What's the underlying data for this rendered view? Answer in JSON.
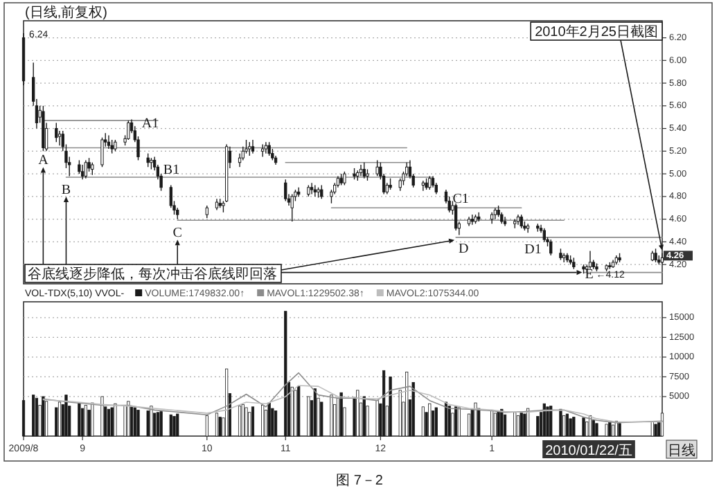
{
  "chart_data": [
    {
      "type": "candlestick",
      "title": "(日线,前复权)",
      "xlim": [
        "2009-08-14",
        "2010-02-25"
      ],
      "ylim": [
        4.03,
        6.35
      ],
      "grid": "y",
      "tick_labels": "y",
      "yticks": [
        {
          "value": 4.2,
          "label": "4.20"
        },
        {
          "value": 4.4,
          "label": "4.40"
        },
        {
          "value": 4.6,
          "label": "4.60"
        },
        {
          "value": 4.8,
          "label": "4.80"
        },
        {
          "value": 5.0,
          "label": "5.00"
        },
        {
          "value": 5.2,
          "label": "5.20"
        },
        {
          "value": 5.4,
          "label": "5.40"
        },
        {
          "value": 5.6,
          "label": "5.60"
        },
        {
          "value": 5.8,
          "label": "5.80"
        },
        {
          "value": 6.0,
          "label": "6.00"
        },
        {
          "value": 6.2,
          "label": "6.20"
        }
      ],
      "x": [
        "2009-08-14",
        "2009-08-17",
        "2009-08-18",
        "2009-08-19",
        "2009-08-20",
        "2009-08-21",
        "2009-08-24",
        "2009-08-25",
        "2009-08-26",
        "2009-08-27",
        "2009-08-28",
        "2009-08-31",
        "2009-09-01",
        "2009-09-02",
        "2009-09-03",
        "2009-09-04",
        "2009-09-07",
        "2009-09-08",
        "2009-09-09",
        "2009-09-10",
        "2009-09-11",
        "2009-09-14",
        "2009-09-15",
        "2009-09-16",
        "2009-09-17",
        "2009-09-18",
        "2009-09-21",
        "2009-09-22",
        "2009-09-23",
        "2009-09-24",
        "2009-09-25",
        "2009-09-28",
        "2009-09-29",
        "2009-09-30",
        "2009-10-09",
        "2009-10-12",
        "2009-10-13",
        "2009-10-14",
        "2009-10-15",
        "2009-10-16",
        "2009-10-19",
        "2009-10-20",
        "2009-10-21",
        "2009-10-22",
        "2009-10-23",
        "2009-10-26",
        "2009-10-27",
        "2009-10-28",
        "2009-10-29",
        "2009-10-30",
        "2009-11-02",
        "2009-11-03",
        "2009-11-04",
        "2009-11-05",
        "2009-11-06",
        "2009-11-09",
        "2009-11-10",
        "2009-11-11",
        "2009-11-12",
        "2009-11-13",
        "2009-11-16",
        "2009-11-17",
        "2009-11-18",
        "2009-11-19",
        "2009-11-20",
        "2009-11-23",
        "2009-11-24",
        "2009-11-25",
        "2009-11-26",
        "2009-11-27",
        "2009-11-30",
        "2009-12-01",
        "2009-12-02",
        "2009-12-03",
        "2009-12-04",
        "2009-12-07",
        "2009-12-08",
        "2009-12-09",
        "2009-12-10",
        "2009-12-11",
        "2009-12-14",
        "2009-12-15",
        "2009-12-16",
        "2009-12-17",
        "2009-12-18",
        "2009-12-21",
        "2009-12-22",
        "2009-12-23",
        "2009-12-24",
        "2009-12-25",
        "2009-12-28",
        "2009-12-29",
        "2009-12-30",
        "2009-12-31",
        "2010-01-04",
        "2010-01-05",
        "2010-01-06",
        "2010-01-07",
        "2010-01-08",
        "2010-01-11",
        "2010-01-12",
        "2010-01-13",
        "2010-01-14",
        "2010-01-15",
        "2010-01-18",
        "2010-01-19",
        "2010-01-20",
        "2010-01-21",
        "2010-01-22",
        "2010-01-25",
        "2010-01-26",
        "2010-01-27",
        "2010-01-28",
        "2010-01-29",
        "2010-02-01",
        "2010-02-02",
        "2010-02-03",
        "2010-02-04",
        "2010-02-05",
        "2010-02-08",
        "2010-02-09",
        "2010-02-10",
        "2010-02-11",
        "2010-02-12",
        "2010-02-22",
        "2010-02-23",
        "2010-02-24",
        "2010-02-25"
      ],
      "ohlc": [
        [
          6.2,
          6.24,
          5.78,
          5.82
        ],
        [
          5.85,
          5.98,
          5.6,
          5.64
        ],
        [
          5.6,
          5.66,
          5.4,
          5.45
        ],
        [
          5.5,
          5.6,
          5.45,
          5.56
        ],
        [
          5.55,
          5.6,
          5.2,
          5.23
        ],
        [
          5.22,
          5.45,
          5.2,
          5.4
        ],
        [
          5.4,
          5.45,
          5.28,
          5.32
        ],
        [
          5.33,
          5.38,
          5.25,
          5.35
        ],
        [
          5.35,
          5.38,
          5.2,
          5.24
        ],
        [
          5.2,
          5.26,
          5.05,
          5.1
        ],
        [
          5.1,
          5.15,
          4.98,
          5.08
        ],
        [
          5.08,
          5.12,
          5.0,
          5.02
        ],
        [
          5.02,
          5.08,
          4.95,
          4.98
        ],
        [
          4.98,
          5.12,
          4.96,
          5.1
        ],
        [
          5.1,
          5.14,
          5.02,
          5.05
        ],
        [
          5.04,
          5.1,
          4.99,
          5.08
        ],
        [
          5.08,
          5.32,
          5.06,
          5.3
        ],
        [
          5.3,
          5.36,
          5.24,
          5.28
        ],
        [
          5.28,
          5.34,
          5.22,
          5.25
        ],
        [
          5.25,
          5.3,
          5.18,
          5.22
        ],
        [
          5.22,
          5.3,
          5.2,
          5.28
        ],
        [
          5.28,
          5.34,
          5.25,
          5.31
        ],
        [
          5.31,
          5.47,
          5.3,
          5.45
        ],
        [
          5.45,
          5.48,
          5.36,
          5.38
        ],
        [
          5.38,
          5.42,
          5.28,
          5.3
        ],
        [
          5.3,
          5.33,
          5.12,
          5.15
        ],
        [
          5.14,
          5.18,
          5.06,
          5.1
        ],
        [
          5.1,
          5.14,
          5.04,
          5.12
        ],
        [
          5.12,
          5.15,
          5.03,
          5.06
        ],
        [
          5.06,
          5.08,
          4.95,
          4.98
        ],
        [
          4.98,
          5.0,
          4.85,
          4.88
        ],
        [
          4.88,
          4.9,
          4.7,
          4.72
        ],
        [
          4.72,
          4.76,
          4.64,
          4.68
        ],
        [
          4.68,
          4.7,
          4.6,
          4.64
        ],
        [
          4.64,
          4.72,
          4.61,
          4.7
        ],
        [
          4.7,
          4.78,
          4.68,
          4.75
        ],
        [
          4.74,
          4.78,
          4.7,
          4.72
        ],
        [
          4.72,
          4.76,
          4.66,
          4.74
        ],
        [
          4.76,
          5.26,
          4.75,
          5.24
        ],
        [
          5.2,
          5.24,
          5.05,
          5.1
        ],
        [
          5.1,
          5.18,
          5.06,
          5.14
        ],
        [
          5.14,
          5.24,
          5.12,
          5.2
        ],
        [
          5.2,
          5.3,
          5.18,
          5.22
        ],
        [
          5.22,
          5.28,
          5.16,
          5.24
        ],
        [
          5.24,
          5.3,
          5.18,
          5.2
        ],
        [
          5.2,
          5.26,
          5.15,
          5.22
        ],
        [
          5.22,
          5.28,
          5.18,
          5.25
        ],
        [
          5.25,
          5.28,
          5.16,
          5.18
        ],
        [
          5.18,
          5.22,
          5.12,
          5.14
        ],
        [
          5.14,
          5.16,
          5.08,
          5.1
        ],
        [
          4.92,
          4.95,
          4.76,
          4.78
        ],
        [
          4.78,
          4.82,
          4.72,
          4.75
        ],
        [
          4.7,
          4.82,
          4.58,
          4.8
        ],
        [
          4.8,
          4.86,
          4.76,
          4.84
        ],
        [
          4.84,
          4.88,
          4.8,
          4.82
        ],
        [
          4.82,
          4.9,
          4.8,
          4.88
        ],
        [
          4.88,
          4.92,
          4.82,
          4.86
        ],
        [
          4.86,
          4.9,
          4.8,
          4.84
        ],
        [
          4.84,
          4.88,
          4.79,
          4.86
        ],
        [
          4.86,
          4.9,
          4.78,
          4.8
        ],
        [
          4.8,
          4.86,
          4.74,
          4.84
        ],
        [
          4.84,
          4.92,
          4.82,
          4.9
        ],
        [
          4.9,
          4.98,
          4.88,
          4.96
        ],
        [
          4.96,
          5.0,
          4.9,
          4.92
        ],
        [
          4.92,
          5.02,
          4.9,
          5.0
        ],
        [
          5.0,
          5.05,
          4.95,
          4.98
        ],
        [
          4.98,
          5.03,
          4.94,
          5.01
        ],
        [
          5.01,
          5.08,
          4.98,
          5.04
        ],
        [
          5.04,
          5.1,
          4.96,
          4.98
        ],
        [
          4.98,
          5.04,
          4.94,
          5.0
        ],
        [
          5.0,
          5.12,
          4.98,
          5.06
        ],
        [
          5.06,
          5.1,
          4.95,
          4.98
        ],
        [
          4.98,
          5.0,
          4.82,
          4.84
        ],
        [
          4.84,
          4.92,
          4.82,
          4.9
        ],
        [
          4.9,
          4.96,
          4.86,
          4.88
        ],
        [
          4.88,
          4.96,
          4.85,
          4.94
        ],
        [
          4.94,
          5.02,
          4.9,
          5.0
        ],
        [
          5.0,
          5.1,
          4.98,
          5.06
        ],
        [
          5.06,
          5.12,
          4.96,
          4.98
        ],
        [
          4.98,
          5.0,
          4.88,
          4.9
        ],
        [
          4.9,
          4.94,
          4.85,
          4.92
        ],
        [
          4.92,
          4.96,
          4.86,
          4.88
        ],
        [
          4.88,
          4.98,
          4.86,
          4.96
        ],
        [
          4.96,
          4.98,
          4.88,
          4.9
        ],
        [
          4.9,
          4.92,
          4.82,
          4.84
        ],
        [
          4.84,
          4.86,
          4.74,
          4.76
        ],
        [
          4.76,
          4.8,
          4.66,
          4.68
        ],
        [
          4.68,
          4.76,
          4.64,
          4.72
        ],
        [
          4.72,
          4.74,
          4.5,
          4.52
        ],
        [
          4.52,
          4.58,
          4.46,
          4.56
        ],
        [
          4.56,
          4.62,
          4.54,
          4.6
        ],
        [
          4.6,
          4.64,
          4.55,
          4.58
        ],
        [
          4.58,
          4.64,
          4.56,
          4.62
        ],
        [
          4.62,
          4.66,
          4.58,
          4.6
        ],
        [
          4.6,
          4.66,
          4.56,
          4.64
        ],
        [
          4.64,
          4.7,
          4.6,
          4.68
        ],
        [
          4.68,
          4.72,
          4.62,
          4.64
        ],
        [
          4.64,
          4.66,
          4.56,
          4.58
        ],
        [
          4.58,
          4.62,
          4.54,
          4.56
        ],
        [
          4.56,
          4.6,
          4.52,
          4.58
        ],
        [
          4.58,
          4.64,
          4.55,
          4.62
        ],
        [
          4.62,
          4.64,
          4.52,
          4.54
        ],
        [
          4.54,
          4.58,
          4.5,
          4.52
        ],
        [
          4.52,
          4.56,
          4.48,
          4.54
        ],
        [
          4.54,
          4.56,
          4.49,
          4.52
        ],
        [
          4.52,
          4.55,
          4.48,
          4.5
        ],
        [
          4.5,
          4.52,
          4.4,
          4.42
        ],
        [
          4.42,
          4.44,
          4.36,
          4.4
        ],
        [
          4.4,
          4.42,
          4.28,
          4.3
        ],
        [
          4.3,
          4.34,
          4.24,
          4.26
        ],
        [
          4.26,
          4.3,
          4.22,
          4.28
        ],
        [
          4.28,
          4.3,
          4.22,
          4.24
        ],
        [
          4.24,
          4.28,
          4.2,
          4.22
        ],
        [
          4.22,
          4.26,
          4.16,
          4.18
        ],
        [
          4.18,
          4.2,
          4.12,
          4.16
        ],
        [
          4.16,
          4.2,
          4.13,
          4.18
        ],
        [
          4.18,
          4.32,
          4.16,
          4.22
        ],
        [
          4.22,
          4.24,
          4.16,
          4.18
        ],
        [
          4.18,
          4.21,
          4.14,
          4.16
        ],
        [
          4.16,
          4.2,
          4.14,
          4.19
        ],
        [
          4.19,
          4.22,
          4.16,
          4.18
        ],
        [
          4.18,
          4.24,
          4.17,
          4.22
        ],
        [
          4.22,
          4.28,
          4.2,
          4.26
        ],
        [
          4.26,
          4.3,
          4.22,
          4.24
        ],
        [
          4.24,
          4.32,
          4.23,
          4.3
        ],
        [
          4.3,
          4.34,
          4.22,
          4.24
        ],
        [
          4.24,
          4.28,
          4.2,
          4.22
        ],
        [
          4.22,
          4.3,
          4.21,
          4.26
        ]
      ],
      "colors": [
        "#1a1a1a",
        "#1a1a1a",
        "#1a1a1a",
        "#ffffff",
        "#1a1a1a",
        "#ffffff",
        "#1a1a1a",
        "#ffffff",
        "#1a1a1a",
        "#1a1a1a",
        "#1a1a1a",
        "#1a1a1a",
        "#1a1a1a",
        "#ffffff",
        "#1a1a1a",
        "#ffffff",
        "#ffffff",
        "#1a1a1a",
        "#1a1a1a",
        "#1a1a1a",
        "#ffffff",
        "#ffffff",
        "#ffffff",
        "#1a1a1a",
        "#1a1a1a",
        "#1a1a1a",
        "#1a1a1a",
        "#ffffff",
        "#1a1a1a",
        "#1a1a1a",
        "#1a1a1a",
        "#1a1a1a",
        "#1a1a1a",
        "#1a1a1a",
        "#ffffff",
        "#ffffff",
        "#1a1a1a",
        "#ffffff",
        "#ffffff",
        "#1a1a1a",
        "#ffffff",
        "#ffffff",
        "#ffffff",
        "#ffffff",
        "#1a1a1a",
        "#ffffff",
        "#ffffff",
        "#1a1a1a",
        "#1a1a1a",
        "#1a1a1a",
        "#1a1a1a",
        "#1a1a1a",
        "#ffffff",
        "#ffffff",
        "#1a1a1a",
        "#ffffff",
        "#1a1a1a",
        "#1a1a1a",
        "#ffffff",
        "#1a1a1a",
        "#ffffff",
        "#ffffff",
        "#ffffff",
        "#1a1a1a",
        "#ffffff",
        "#1a1a1a",
        "#ffffff",
        "#ffffff",
        "#1a1a1a",
        "#ffffff",
        "#ffffff",
        "#1a1a1a",
        "#1a1a1a",
        "#ffffff",
        "#1a1a1a",
        "#ffffff",
        "#ffffff",
        "#ffffff",
        "#1a1a1a",
        "#1a1a1a",
        "#ffffff",
        "#1a1a1a",
        "#ffffff",
        "#1a1a1a",
        "#1a1a1a",
        "#1a1a1a",
        "#1a1a1a",
        "#ffffff",
        "#1a1a1a",
        "#ffffff",
        "#ffffff",
        "#1a1a1a",
        "#ffffff",
        "#1a1a1a",
        "#ffffff",
        "#ffffff",
        "#1a1a1a",
        "#1a1a1a",
        "#1a1a1a",
        "#ffffff",
        "#ffffff",
        "#1a1a1a",
        "#1a1a1a",
        "#ffffff",
        "#1a1a1a",
        "#1a1a1a",
        "#1a1a1a",
        "#1a1a1a",
        "#1a1a1a",
        "#1a1a1a",
        "#ffffff",
        "#1a1a1a",
        "#1a1a1a",
        "#1a1a1a",
        "#1a1a1a",
        "#ffffff",
        "#ffffff",
        "#1a1a1a",
        "#1a1a1a",
        "#ffffff",
        "#1a1a1a",
        "#ffffff",
        "#ffffff",
        "#1a1a1a",
        "#ffffff",
        "#1a1a1a",
        "#1a1a1a",
        "#ffffff"
      ],
      "series": [
        {
          "type": "line",
          "color": "#8c8c8c",
          "x": [
            "2009-08-20",
            "2009-12-09"
          ],
          "values": [
            5.23,
            5.23
          ]
        },
        {
          "type": "line",
          "color": "#8c8c8c",
          "x": [
            "2009-08-20",
            "2009-09-24"
          ],
          "values": [
            5.47,
            5.47
          ]
        },
        {
          "type": "line",
          "color": "#8c8c8c",
          "x": [
            "2009-08-27",
            "2009-12-17"
          ],
          "values": [
            4.97,
            4.97
          ]
        },
        {
          "type": "line",
          "color": "#8c8c8c",
          "x": [
            "2009-09-30",
            "2010-01-26"
          ],
          "values": [
            4.59,
            4.59
          ]
        },
        {
          "type": "line",
          "color": "#8c8c8c",
          "x": [
            "2009-12-24",
            "2010-02-25"
          ],
          "values": [
            4.44,
            4.44
          ]
        },
        {
          "type": "line",
          "color": "#8c8c8c",
          "x": [
            "2010-02-01",
            "2010-02-25"
          ],
          "values": [
            4.13,
            4.13
          ]
        },
        {
          "type": "line",
          "color": "#8c8c8c",
          "x": [
            "2009-11-02",
            "2009-12-10"
          ],
          "values": [
            5.1,
            5.1
          ]
        },
        {
          "type": "line",
          "color": "#8c8c8c",
          "x": [
            "2009-11-16",
            "2010-01-13"
          ],
          "values": [
            4.7,
            4.7
          ]
        }
      ],
      "annotations": [
        {
          "text": "6.24",
          "x": "2009-08-14",
          "y": 6.24
        },
        {
          "text": "A",
          "x": "2009-08-20",
          "y": 5.23
        },
        {
          "text": "A1",
          "x": "2009-09-17",
          "y": 5.47
        },
        {
          "text": "B",
          "x": "2009-08-27",
          "y": 4.97
        },
        {
          "text": "B1",
          "x": "2009-09-24",
          "y": 5.1
        },
        {
          "text": "C",
          "x": "2009-09-30",
          "y": 4.59
        },
        {
          "text": "C1",
          "x": "2009-12-23",
          "y": 4.72
        },
        {
          "text": "D",
          "x": "2009-12-24",
          "y": 4.44
        },
        {
          "text": "D1",
          "x": "2010-01-20",
          "y": 4.42
        },
        {
          "text": "E",
          "x": "2010-02-01",
          "y": 4.13
        },
        {
          "text": "←4.12",
          "x": "2010-02-01",
          "y": 4.12
        },
        {
          "text": "4.26",
          "x": "2010-02-25",
          "y": 4.26
        },
        {
          "text": "2010年2月25日截图",
          "x": "2010-02-25",
          "y": 4.3
        },
        {
          "text": "谷底线逐步降低，每次冲击谷底线即回落",
          "x": "2009-12-24",
          "y": 4.44
        }
      ]
    },
    {
      "type": "bar",
      "title": "VOL-TDX(5,10) VVOL-",
      "xlim": [
        "2009-08-14",
        "2010-02-25"
      ],
      "ylim": [
        0,
        17000
      ],
      "yticks": [
        5000,
        7500,
        10000,
        12500,
        15000
      ],
      "grid": "y",
      "legend": "top left",
      "xticks": [
        {
          "value": "2009-08-14",
          "label": "2009/8"
        },
        {
          "value": "2009-09-01",
          "label": "9"
        },
        {
          "value": "2009-10-09",
          "label": "10"
        },
        {
          "value": "2009-11-02",
          "label": "11"
        },
        {
          "value": "2009-12-01",
          "label": "12"
        },
        {
          "value": "2010-01-04",
          "label": "1"
        }
      ],
      "x": [
        "2009-08-14",
        "2009-08-17",
        "2009-08-18",
        "2009-08-19",
        "2009-08-20",
        "2009-08-21",
        "2009-08-24",
        "2009-08-25",
        "2009-08-26",
        "2009-08-27",
        "2009-08-28",
        "2009-08-31",
        "2009-09-01",
        "2009-09-02",
        "2009-09-03",
        "2009-09-04",
        "2009-09-07",
        "2009-09-08",
        "2009-09-09",
        "2009-09-10",
        "2009-09-11",
        "2009-09-14",
        "2009-09-15",
        "2009-09-16",
        "2009-09-17",
        "2009-09-18",
        "2009-09-21",
        "2009-09-22",
        "2009-09-23",
        "2009-09-24",
        "2009-09-25",
        "2009-09-28",
        "2009-09-29",
        "2009-09-30",
        "2009-10-09",
        "2009-10-12",
        "2009-10-13",
        "2009-10-14",
        "2009-10-15",
        "2009-10-16",
        "2009-10-19",
        "2009-10-20",
        "2009-10-21",
        "2009-10-22",
        "2009-10-23",
        "2009-10-26",
        "2009-10-27",
        "2009-10-28",
        "2009-10-29",
        "2009-10-30",
        "2009-11-02",
        "2009-11-03",
        "2009-11-04",
        "2009-11-05",
        "2009-11-06",
        "2009-11-09",
        "2009-11-10",
        "2009-11-11",
        "2009-11-12",
        "2009-11-13",
        "2009-11-16",
        "2009-11-17",
        "2009-11-18",
        "2009-11-19",
        "2009-11-20",
        "2009-11-23",
        "2009-11-24",
        "2009-11-25",
        "2009-11-26",
        "2009-11-27",
        "2009-11-30",
        "2009-12-01",
        "2009-12-02",
        "2009-12-03",
        "2009-12-04",
        "2009-12-07",
        "2009-12-08",
        "2009-12-09",
        "2009-12-10",
        "2009-12-11",
        "2009-12-14",
        "2009-12-15",
        "2009-12-16",
        "2009-12-17",
        "2009-12-18",
        "2009-12-21",
        "2009-12-22",
        "2009-12-23",
        "2009-12-24",
        "2009-12-25",
        "2009-12-28",
        "2009-12-29",
        "2009-12-30",
        "2009-12-31",
        "2010-01-04",
        "2010-01-05",
        "2010-01-06",
        "2010-01-07",
        "2010-01-08",
        "2010-01-11",
        "2010-01-12",
        "2010-01-13",
        "2010-01-14",
        "2010-01-15",
        "2010-01-18",
        "2010-01-19",
        "2010-01-20",
        "2010-01-21",
        "2010-01-22",
        "2010-01-25",
        "2010-01-26",
        "2010-01-27",
        "2010-01-28",
        "2010-01-29",
        "2010-02-01",
        "2010-02-02",
        "2010-02-03",
        "2010-02-04",
        "2010-02-05",
        "2010-02-08",
        "2010-02-09",
        "2010-02-10",
        "2010-02-11",
        "2010-02-12",
        "2010-02-22",
        "2010-02-23",
        "2010-02-24",
        "2010-02-25"
      ],
      "series": [
        {
          "name": "VOLUME:1749832.00↑",
          "type": "bar",
          "color": "#1a1a1a",
          "values": [
            4500,
            5200,
            4800,
            3900,
            5000,
            4400,
            3600,
            4300,
            4000,
            5200,
            3800,
            4200,
            3500,
            3900,
            3300,
            4200,
            5000,
            3700,
            3400,
            3600,
            4100,
            3900,
            4400,
            3800,
            3600,
            3300,
            3200,
            3800,
            2900,
            3000,
            3100,
            2700,
            2500,
            2800,
            2600,
            2900,
            2400,
            2300,
            8500,
            5400,
            3800,
            4000,
            3600,
            3000,
            3700,
            3900,
            3300,
            4200,
            3500,
            3200,
            15800,
            6800,
            6200,
            5800,
            6300,
            5000,
            4500,
            6000,
            4800,
            4300,
            5200,
            4000,
            4800,
            5500,
            3600,
            4900,
            5800,
            4200,
            5000,
            3800,
            4500,
            4100,
            8300,
            3800,
            7500,
            5800,
            4300,
            8100,
            4600,
            6800,
            3700,
            3000,
            4100,
            3200,
            3600,
            4300,
            3800,
            2900,
            3700,
            3600,
            2800,
            3300,
            4200,
            3500,
            3300,
            2900,
            3100,
            3400,
            2700,
            3000,
            2600,
            3100,
            2800,
            3500,
            2500,
            3000,
            4100,
            3700,
            3800,
            3400,
            2600,
            2800,
            2200,
            2400,
            2300,
            1800,
            2600,
            2000,
            1600,
            1500,
            1700,
            1400,
            1900,
            1600,
            1800,
            1500,
            1700,
            2900
          ],
          "colors": [
            "#1a1a1a",
            "#1a1a1a",
            "#1a1a1a",
            "#ffffff",
            "#1a1a1a",
            "#ffffff",
            "#1a1a1a",
            "#ffffff",
            "#1a1a1a",
            "#1a1a1a",
            "#1a1a1a",
            "#1a1a1a",
            "#1a1a1a",
            "#ffffff",
            "#1a1a1a",
            "#ffffff",
            "#ffffff",
            "#1a1a1a",
            "#1a1a1a",
            "#1a1a1a",
            "#ffffff",
            "#ffffff",
            "#ffffff",
            "#1a1a1a",
            "#1a1a1a",
            "#1a1a1a",
            "#1a1a1a",
            "#ffffff",
            "#1a1a1a",
            "#1a1a1a",
            "#1a1a1a",
            "#1a1a1a",
            "#1a1a1a",
            "#1a1a1a",
            "#ffffff",
            "#ffffff",
            "#1a1a1a",
            "#ffffff",
            "#ffffff",
            "#1a1a1a",
            "#ffffff",
            "#ffffff",
            "#ffffff",
            "#ffffff",
            "#1a1a1a",
            "#ffffff",
            "#ffffff",
            "#1a1a1a",
            "#1a1a1a",
            "#1a1a1a",
            "#1a1a1a",
            "#1a1a1a",
            "#ffffff",
            "#ffffff",
            "#1a1a1a",
            "#ffffff",
            "#1a1a1a",
            "#1a1a1a",
            "#ffffff",
            "#1a1a1a",
            "#ffffff",
            "#ffffff",
            "#ffffff",
            "#1a1a1a",
            "#ffffff",
            "#1a1a1a",
            "#ffffff",
            "#ffffff",
            "#1a1a1a",
            "#ffffff",
            "#ffffff",
            "#1a1a1a",
            "#1a1a1a",
            "#ffffff",
            "#1a1a1a",
            "#ffffff",
            "#ffffff",
            "#ffffff",
            "#1a1a1a",
            "#1a1a1a",
            "#ffffff",
            "#1a1a1a",
            "#ffffff",
            "#1a1a1a",
            "#1a1a1a",
            "#1a1a1a",
            "#1a1a1a",
            "#ffffff",
            "#1a1a1a",
            "#ffffff",
            "#ffffff",
            "#1a1a1a",
            "#ffffff",
            "#1a1a1a",
            "#ffffff",
            "#ffffff",
            "#1a1a1a",
            "#1a1a1a",
            "#1a1a1a",
            "#ffffff",
            "#ffffff",
            "#1a1a1a",
            "#1a1a1a",
            "#ffffff",
            "#1a1a1a",
            "#1a1a1a",
            "#1a1a1a",
            "#1a1a1a",
            "#1a1a1a",
            "#1a1a1a",
            "#ffffff",
            "#1a1a1a",
            "#1a1a1a",
            "#1a1a1a",
            "#1a1a1a",
            "#ffffff",
            "#ffffff",
            "#1a1a1a",
            "#1a1a1a",
            "#ffffff",
            "#1a1a1a",
            "#ffffff",
            "#ffffff",
            "#1a1a1a",
            "#ffffff",
            "#1a1a1a",
            "#1a1a1a",
            "#ffffff"
          ]
        },
        {
          "name": "MAVOL1:1229502.38↑",
          "type": "line",
          "color": "#8c8c8c",
          "x": [
            "2009-08-20",
            "2009-08-28",
            "2009-09-07",
            "2009-09-15",
            "2009-09-23",
            "2009-10-09",
            "2009-10-15",
            "2009-10-21",
            "2009-10-27",
            "2009-11-02",
            "2009-11-06",
            "2009-11-12",
            "2009-11-18",
            "2009-11-24",
            "2009-11-30",
            "2009-12-04",
            "2009-12-10",
            "2009-12-16",
            "2009-12-22",
            "2009-12-28",
            "2010-01-04",
            "2010-01-08",
            "2010-01-14",
            "2010-01-20",
            "2010-01-26",
            "2010-02-01",
            "2010-02-05",
            "2010-02-11",
            "2010-02-25"
          ],
          "values": [
            4700,
            4300,
            3900,
            3900,
            3300,
            2700,
            3800,
            5300,
            3700,
            6500,
            8000,
            5200,
            4800,
            4800,
            4500,
            5800,
            6300,
            4500,
            3500,
            3400,
            3200,
            3000,
            3100,
            3300,
            3300,
            2400,
            2000,
            1700,
            1900
          ]
        },
        {
          "name": "MAVOL2:1075344.00",
          "type": "line",
          "color": "#bdbdbd",
          "x": [
            "2009-08-20",
            "2009-08-28",
            "2009-09-07",
            "2009-09-15",
            "2009-09-23",
            "2009-10-09",
            "2009-10-15",
            "2009-10-21",
            "2009-10-27",
            "2009-11-02",
            "2009-11-06",
            "2009-11-12",
            "2009-11-18",
            "2009-11-24",
            "2009-11-30",
            "2009-12-04",
            "2009-12-10",
            "2009-12-16",
            "2009-12-22",
            "2009-12-28",
            "2010-01-04",
            "2010-01-08",
            "2010-01-14",
            "2010-01-20",
            "2010-01-26",
            "2010-02-01",
            "2010-02-05",
            "2010-02-11",
            "2010-02-25"
          ],
          "values": [
            4600,
            4400,
            4000,
            3800,
            3500,
            2900,
            3300,
            4300,
            4100,
            5000,
            6400,
            6300,
            5000,
            4800,
            4700,
            5200,
            5800,
            5200,
            4000,
            3500,
            3300,
            3100,
            3000,
            3200,
            3300,
            2800,
            2200,
            1800,
            1800
          ]
        }
      ],
      "annotations": [
        "2010/01/22/五",
        "日线",
        "图 7－2"
      ]
    }
  ]
}
